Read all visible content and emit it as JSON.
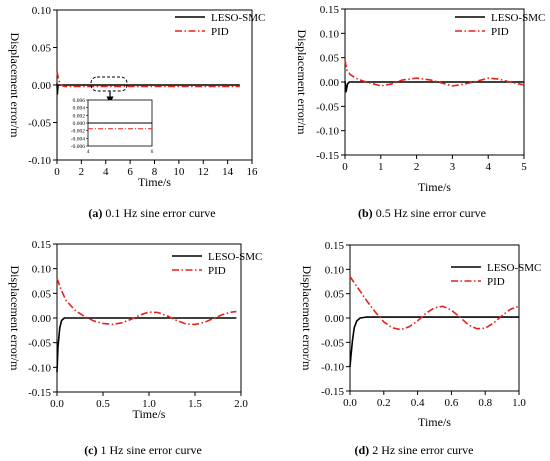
{
  "chart_data": [
    {
      "type": "line",
      "caption_letter": "(a)",
      "caption_text": " 0.1 Hz sine error curve",
      "xlabel": "Time/s",
      "ylabel": "Displacement error/m",
      "xlim": [
        0,
        16
      ],
      "ylim": [
        -0.1,
        0.1
      ],
      "xticks": [
        0,
        2,
        4,
        6,
        8,
        10,
        12,
        14,
        16
      ],
      "xtick_labels": [
        "0",
        "2",
        "4",
        "6",
        "8",
        "10",
        "12",
        "14",
        "16"
      ],
      "yticks": [
        -0.1,
        -0.05,
        0.0,
        0.05,
        0.1
      ],
      "ytick_labels": [
        "-0.10",
        "-0.05",
        "0.00",
        "0.05",
        "0.10"
      ],
      "legend": [
        "LESO-SMC",
        "PID"
      ],
      "series": [
        {
          "name": "LESO-SMC",
          "color": "#000000",
          "dash": "solid",
          "x": [
            0,
            0.03,
            0.08,
            0.15,
            0.3,
            1,
            15
          ],
          "y": [
            0.002,
            -0.012,
            -0.001,
            0.0,
            0.0,
            0.0,
            0.0
          ]
        },
        {
          "name": "PID",
          "color": "#e8201a",
          "dash": "dashdot",
          "x": [
            0,
            0.1,
            0.2,
            0.35,
            0.6,
            1,
            2,
            4,
            6,
            8,
            10,
            12,
            14,
            15
          ],
          "y": [
            0.018,
            0.01,
            0.004,
            0.0,
            -0.002,
            -0.002,
            -0.002,
            -0.002,
            -0.002,
            -0.002,
            -0.002,
            -0.002,
            -0.002,
            -0.002
          ]
        }
      ],
      "inset": {
        "xlim": [
          4,
          6
        ],
        "ylim": [
          -0.006,
          0.006
        ],
        "xtick_labels": [
          "4",
          "6"
        ],
        "ytick_labels": [
          "0.006",
          "0.004",
          "0.002",
          "0.000",
          "-0.002",
          "-0.004",
          "-0.006"
        ],
        "series": [
          {
            "name": "LESO-SMC",
            "x": [
              4,
              6
            ],
            "y": [
              0.0,
              0.0
            ]
          },
          {
            "name": "PID",
            "x": [
              4,
              6
            ],
            "y": [
              -0.0015,
              -0.0015
            ]
          }
        ]
      }
    },
    {
      "type": "line",
      "caption_letter": "(b)",
      "caption_text": " 0.5 Hz sine error curve",
      "xlabel": "Time/s",
      "ylabel": "Displacement error/m",
      "xlim": [
        0,
        5
      ],
      "ylim": [
        -0.15,
        0.15
      ],
      "xticks": [
        0,
        1,
        2,
        3,
        4,
        5
      ],
      "xtick_labels": [
        "0",
        "1",
        "2",
        "3",
        "4",
        "5"
      ],
      "yticks": [
        -0.15,
        -0.1,
        -0.05,
        0.0,
        0.05,
        0.1,
        0.15
      ],
      "ytick_labels": [
        "-0.15",
        "-0.10",
        "-0.05",
        "0.00",
        "0.05",
        "0.10",
        "0.15"
      ],
      "legend": [
        "LESO-SMC",
        "PID"
      ],
      "series": [
        {
          "name": "LESO-SMC",
          "color": "#000000",
          "dash": "solid",
          "x": [
            0,
            0.03,
            0.07,
            0.12,
            0.2,
            5
          ],
          "y": [
            0.002,
            -0.02,
            -0.004,
            0.0,
            0.0,
            0.0
          ]
        },
        {
          "name": "PID",
          "color": "#e8201a",
          "dash": "dashdot",
          "x": [
            0,
            0.05,
            0.15,
            0.3,
            0.5,
            0.8,
            1.0,
            1.3,
            1.6,
            2.0,
            2.4,
            2.8,
            3.0,
            3.2,
            3.6,
            4.0,
            4.3,
            4.6,
            5.0
          ],
          "y": [
            0.045,
            0.025,
            0.015,
            0.008,
            0.002,
            -0.004,
            -0.008,
            -0.004,
            0.004,
            0.008,
            0.004,
            -0.004,
            -0.008,
            -0.006,
            0.0,
            0.008,
            0.006,
            0.0,
            -0.006
          ]
        }
      ]
    },
    {
      "type": "line",
      "caption_letter": "(c)",
      "caption_text": " 1 Hz sine error curve",
      "xlabel": "Time/s",
      "ylabel": "Displacement error/m",
      "xlim": [
        0,
        2
      ],
      "ylim": [
        -0.15,
        0.15
      ],
      "xticks": [
        0,
        0.5,
        1.0,
        1.5,
        2.0
      ],
      "xtick_labels": [
        "0.0",
        "0.5",
        "1.0",
        "1.5",
        "2.0"
      ],
      "yticks": [
        -0.15,
        -0.1,
        -0.05,
        0.0,
        0.05,
        0.1,
        0.15
      ],
      "ytick_labels": [
        "-0.15",
        "-0.10",
        "-0.05",
        "0.00",
        "0.05",
        "0.10",
        "0.15"
      ],
      "legend": [
        "LESO-SMC",
        "PID"
      ],
      "series": [
        {
          "name": "LESO-SMC",
          "color": "#000000",
          "dash": "solid",
          "x": [
            0,
            0.01,
            0.03,
            0.05,
            0.08,
            0.12,
            1.95
          ],
          "y": [
            -0.11,
            -0.06,
            -0.02,
            -0.005,
            0.0,
            0.0,
            0.0
          ]
        },
        {
          "name": "PID",
          "color": "#e8201a",
          "dash": "dashdot",
          "x": [
            0,
            0.05,
            0.1,
            0.2,
            0.3,
            0.4,
            0.5,
            0.6,
            0.7,
            0.8,
            0.9,
            1.0,
            1.1,
            1.2,
            1.3,
            1.4,
            1.5,
            1.6,
            1.7,
            1.8,
            1.9,
            1.95
          ],
          "y": [
            0.08,
            0.055,
            0.035,
            0.015,
            0.003,
            -0.006,
            -0.011,
            -0.013,
            -0.01,
            -0.003,
            0.006,
            0.012,
            0.011,
            0.004,
            -0.005,
            -0.012,
            -0.013,
            -0.009,
            -0.001,
            0.007,
            0.012,
            0.013
          ]
        }
      ]
    },
    {
      "type": "line",
      "caption_letter": "(d)",
      "caption_text": " 2 Hz sine error curve",
      "xlabel": "Time/s",
      "ylabel": "Displacement error/m",
      "xlim": [
        0,
        1
      ],
      "ylim": [
        -0.15,
        0.15
      ],
      "xticks": [
        0,
        0.2,
        0.4,
        0.6,
        0.8,
        1.0
      ],
      "xtick_labels": [
        "0.0",
        "0.2",
        "0.4",
        "0.6",
        "0.8",
        "1.0"
      ],
      "yticks": [
        -0.15,
        -0.1,
        -0.05,
        0.0,
        0.05,
        0.1,
        0.15
      ],
      "ytick_labels": [
        "-0.15",
        "-0.10",
        "-0.05",
        "0.00",
        "0.05",
        "0.10",
        "0.15"
      ],
      "legend": [
        "LESO-SMC",
        "PID"
      ],
      "series": [
        {
          "name": "LESO-SMC",
          "color": "#000000",
          "dash": "solid",
          "x": [
            0,
            0.005,
            0.015,
            0.025,
            0.04,
            0.06,
            0.1,
            0.3,
            0.6,
            1.0
          ],
          "y": [
            -0.1,
            -0.08,
            -0.045,
            -0.02,
            -0.006,
            0.0,
            0.002,
            0.002,
            0.002,
            0.002
          ]
        },
        {
          "name": "PID",
          "color": "#e8201a",
          "dash": "dashdot",
          "x": [
            0,
            0.03,
            0.06,
            0.1,
            0.15,
            0.2,
            0.25,
            0.3,
            0.35,
            0.4,
            0.45,
            0.5,
            0.55,
            0.6,
            0.65,
            0.7,
            0.75,
            0.8,
            0.85,
            0.9,
            0.95,
            1.0
          ],
          "y": [
            0.085,
            0.07,
            0.055,
            0.035,
            0.012,
            -0.008,
            -0.02,
            -0.024,
            -0.018,
            -0.006,
            0.01,
            0.021,
            0.024,
            0.016,
            0.002,
            -0.014,
            -0.022,
            -0.021,
            -0.01,
            0.005,
            0.018,
            0.024
          ]
        }
      ]
    }
  ]
}
